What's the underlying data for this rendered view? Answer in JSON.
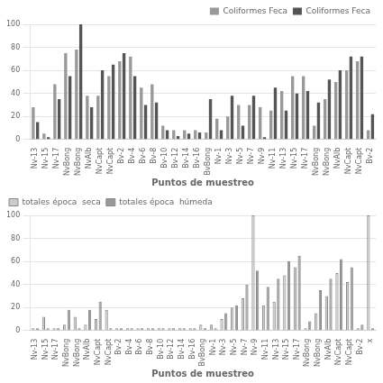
{
  "chart_data": [
    {
      "type": "bar",
      "x_label": "Puntos de muestreo",
      "categories": [
        "Nv-13",
        "Nv-15",
        "Nv-17",
        "NvBong",
        "NvBong",
        "NvAlb",
        "NvCapt",
        "NvCapt",
        "Bv-2",
        "Bv-4",
        "Bv-6",
        "Bv-8",
        "Bv-10",
        "Bv-12",
        "Bv-14",
        "Bv-16",
        "BvBong",
        "Nv-1",
        "Nv-3",
        "Nv-5",
        "Nv-7",
        "Nv-9",
        "Nv-11",
        "Nv-13",
        "Nv-15",
        "Nv-17",
        "NvBong",
        "NvBong",
        "NvAlb",
        "NvCapt",
        "NvCapt",
        "Bv-2"
      ],
      "series": [
        {
          "name": "Coliformes Feca",
          "color": "#999999",
          "values": [
            28,
            5,
            48,
            75,
            78,
            38,
            38,
            55,
            68,
            72,
            45,
            48,
            12,
            8,
            8,
            8,
            6,
            18,
            20,
            30,
            30,
            28,
            25,
            42,
            55,
            55,
            12,
            35,
            50,
            60,
            68,
            8
          ]
        },
        {
          "name": "Coliformes Feca",
          "color": "#555555",
          "values": [
            15,
            2,
            35,
            55,
            100,
            28,
            60,
            65,
            75,
            55,
            30,
            32,
            8,
            3,
            5,
            6,
            35,
            8,
            38,
            12,
            38,
            2,
            45,
            25,
            40,
            42,
            32,
            52,
            60,
            72,
            72,
            22
          ]
        }
      ],
      "ylim": [
        0,
        100
      ],
      "yticks": [
        0,
        20,
        40,
        60,
        80,
        100
      ],
      "grid": true,
      "legend": "upper right"
    },
    {
      "type": "bar",
      "x_label": "Puntos de muestreo",
      "categories": [
        "Nv-13",
        "Nv-15",
        "Nv-17",
        "NvBong",
        "NvBong",
        "NvAlb",
        "NvCapt",
        "NvCapt",
        "Bv-2",
        "Bv-4",
        "Bv-6",
        "Bv-8",
        "Bv-10",
        "Bv-12",
        "Bv-14",
        "Bv-16",
        "BvBong",
        "Nv-1",
        "Nv-3",
        "Nv-5",
        "Nv-7",
        "Nv-9",
        "Nv-11",
        "Nv-13",
        "Nv-15",
        "Nv-17",
        "NvBong",
        "NvBong",
        "NvAlb",
        "NvCapt",
        "NvCapt",
        "Bv-2",
        "x"
      ],
      "series": [
        {
          "name": "totales época  seca",
          "color": "#cccccc",
          "values": [
            2,
            12,
            2,
            5,
            12,
            5,
            10,
            18,
            2,
            2,
            2,
            2,
            2,
            2,
            2,
            2,
            5,
            5,
            10,
            20,
            28,
            100,
            22,
            25,
            48,
            55,
            2,
            15,
            30,
            50,
            42,
            2,
            100
          ]
        },
        {
          "name": "totales época  húmeda",
          "color": "#999999",
          "values": [
            2,
            2,
            2,
            18,
            2,
            18,
            25,
            2,
            2,
            2,
            2,
            2,
            2,
            2,
            2,
            2,
            2,
            2,
            15,
            22,
            40,
            52,
            38,
            45,
            60,
            65,
            8,
            35,
            45,
            62,
            55,
            5,
            2
          ]
        }
      ],
      "ylim": [
        0,
        100
      ],
      "yticks": [
        0,
        20,
        40,
        60,
        80,
        100
      ],
      "grid": true,
      "legend": "upper left"
    }
  ]
}
